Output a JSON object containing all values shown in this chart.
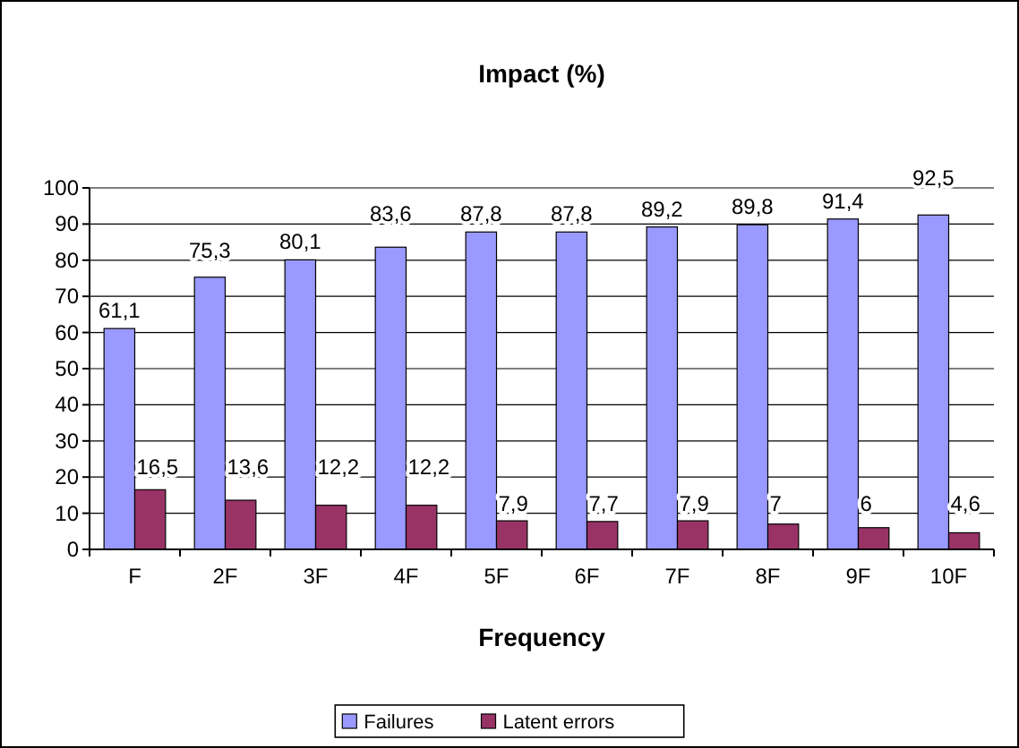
{
  "chart_data": {
    "type": "bar",
    "title": "Impact (%)",
    "xlabel": "Frequency",
    "categories": [
      "F",
      "2F",
      "3F",
      "4F",
      "5F",
      "6F",
      "7F",
      "8F",
      "9F",
      "10F"
    ],
    "series": [
      {
        "name": "Failures",
        "color": "#9999ff",
        "values": [
          61.1,
          75.3,
          80.1,
          83.6,
          87.8,
          87.8,
          89.2,
          89.8,
          91.4,
          92.5
        ],
        "value_labels": [
          "61,1",
          "75,3",
          "80,1",
          "83,6",
          "87,8",
          "87,8",
          "89,2",
          "89,8",
          "91,4",
          "92,5"
        ]
      },
      {
        "name": "Latent errors",
        "color": "#993366",
        "values": [
          16.5,
          13.6,
          12.2,
          12.2,
          7.9,
          7.7,
          7.9,
          7,
          6,
          4.6
        ],
        "value_labels": [
          "16,5",
          "13,6",
          "12,2",
          "12,2",
          "7,9",
          "7,7",
          "7,9",
          "7",
          "6",
          "4,6"
        ]
      }
    ],
    "ylim": [
      0,
      100
    ],
    "yticks": [
      0,
      10,
      20,
      30,
      40,
      50,
      60,
      70,
      80,
      90,
      100
    ],
    "grid": "y",
    "legend": "bottom"
  }
}
